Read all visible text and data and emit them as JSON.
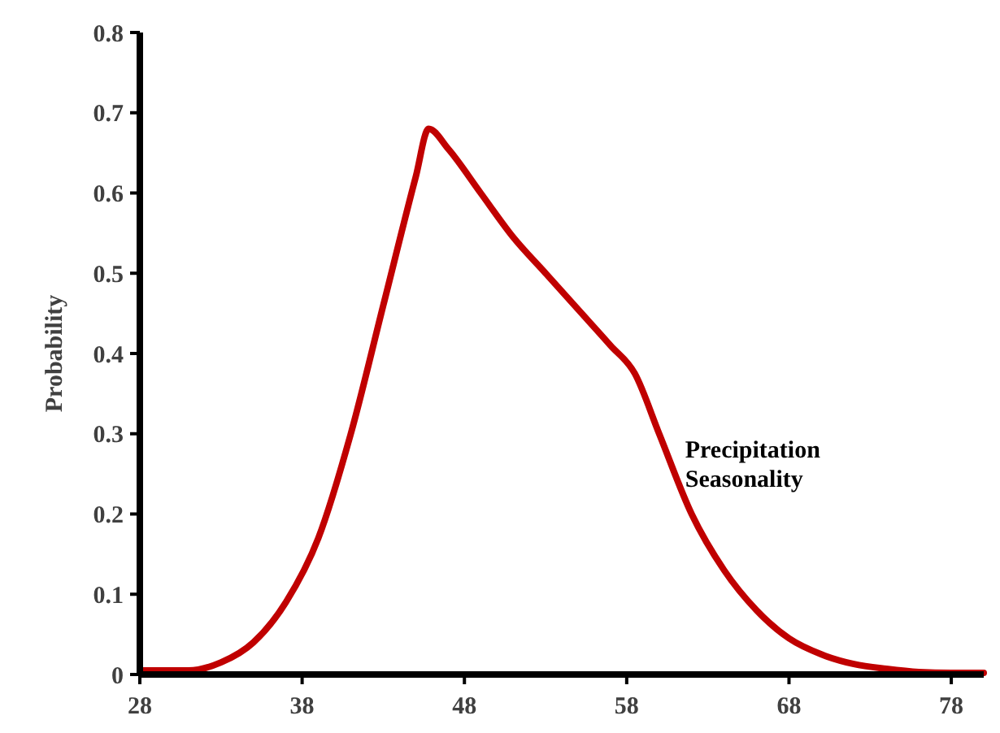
{
  "chart_data": {
    "type": "line",
    "ylabel": "Probability",
    "xlim": [
      28,
      80
    ],
    "ylim": [
      0,
      0.8
    ],
    "xticks": [
      28,
      38,
      48,
      58,
      68,
      78
    ],
    "yticks": [
      0,
      0.1,
      0.2,
      0.3,
      0.4,
      0.5,
      0.6,
      0.7,
      0.8
    ],
    "grid": false,
    "marker": "none",
    "line_style": "solid",
    "series": [
      {
        "name": "Precipitation Seasonality",
        "color": "#c00000",
        "x": [
          28,
          31,
          33,
          35,
          37,
          39,
          41,
          43,
          45,
          45.8,
          47,
          49,
          51,
          53,
          55,
          57,
          58.5,
          60,
          62,
          64,
          66,
          68,
          70,
          72,
          74,
          76,
          78,
          80
        ],
        "values": [
          0.005,
          0.005,
          0.015,
          0.04,
          0.09,
          0.17,
          0.3,
          0.46,
          0.62,
          0.68,
          0.655,
          0.6,
          0.545,
          0.5,
          0.455,
          0.41,
          0.375,
          0.3,
          0.2,
          0.13,
          0.08,
          0.045,
          0.025,
          0.013,
          0.007,
          0.003,
          0.002,
          0.002
        ]
      }
    ]
  }
}
